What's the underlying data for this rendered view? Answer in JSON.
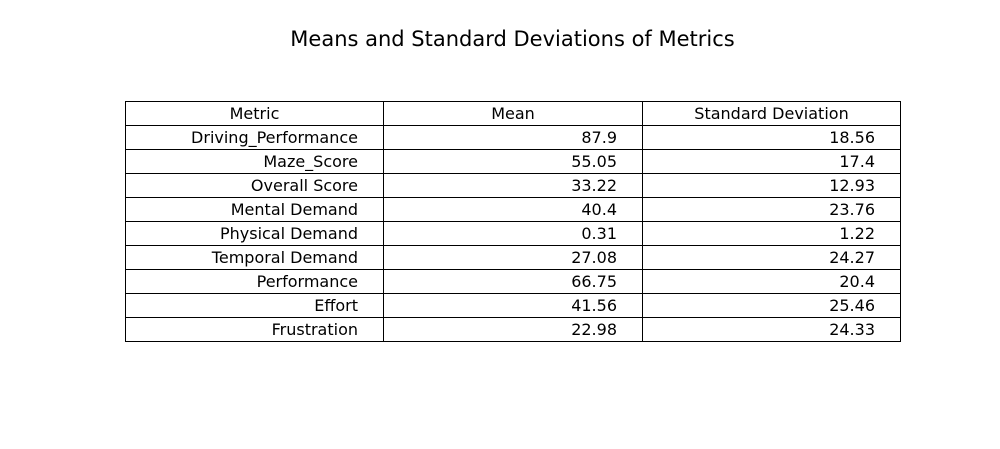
{
  "chart_data": {
    "type": "table",
    "title": "Means and Standard Deviations of Metrics",
    "columns": [
      "Metric",
      "Mean",
      "Standard Deviation"
    ],
    "rows": [
      [
        "Driving_Performance",
        "87.9",
        "18.56"
      ],
      [
        "Maze_Score",
        "55.05",
        "17.4"
      ],
      [
        "Overall Score",
        "33.22",
        "12.93"
      ],
      [
        "Mental Demand",
        "40.4",
        "23.76"
      ],
      [
        "Physical Demand",
        "0.31",
        "1.22"
      ],
      [
        "Temporal Demand",
        "27.08",
        "24.27"
      ],
      [
        "Performance",
        "66.75",
        "20.4"
      ],
      [
        "Effort",
        "41.56",
        "25.46"
      ],
      [
        "Frustration",
        "22.98",
        "24.33"
      ]
    ],
    "grid": true
  }
}
